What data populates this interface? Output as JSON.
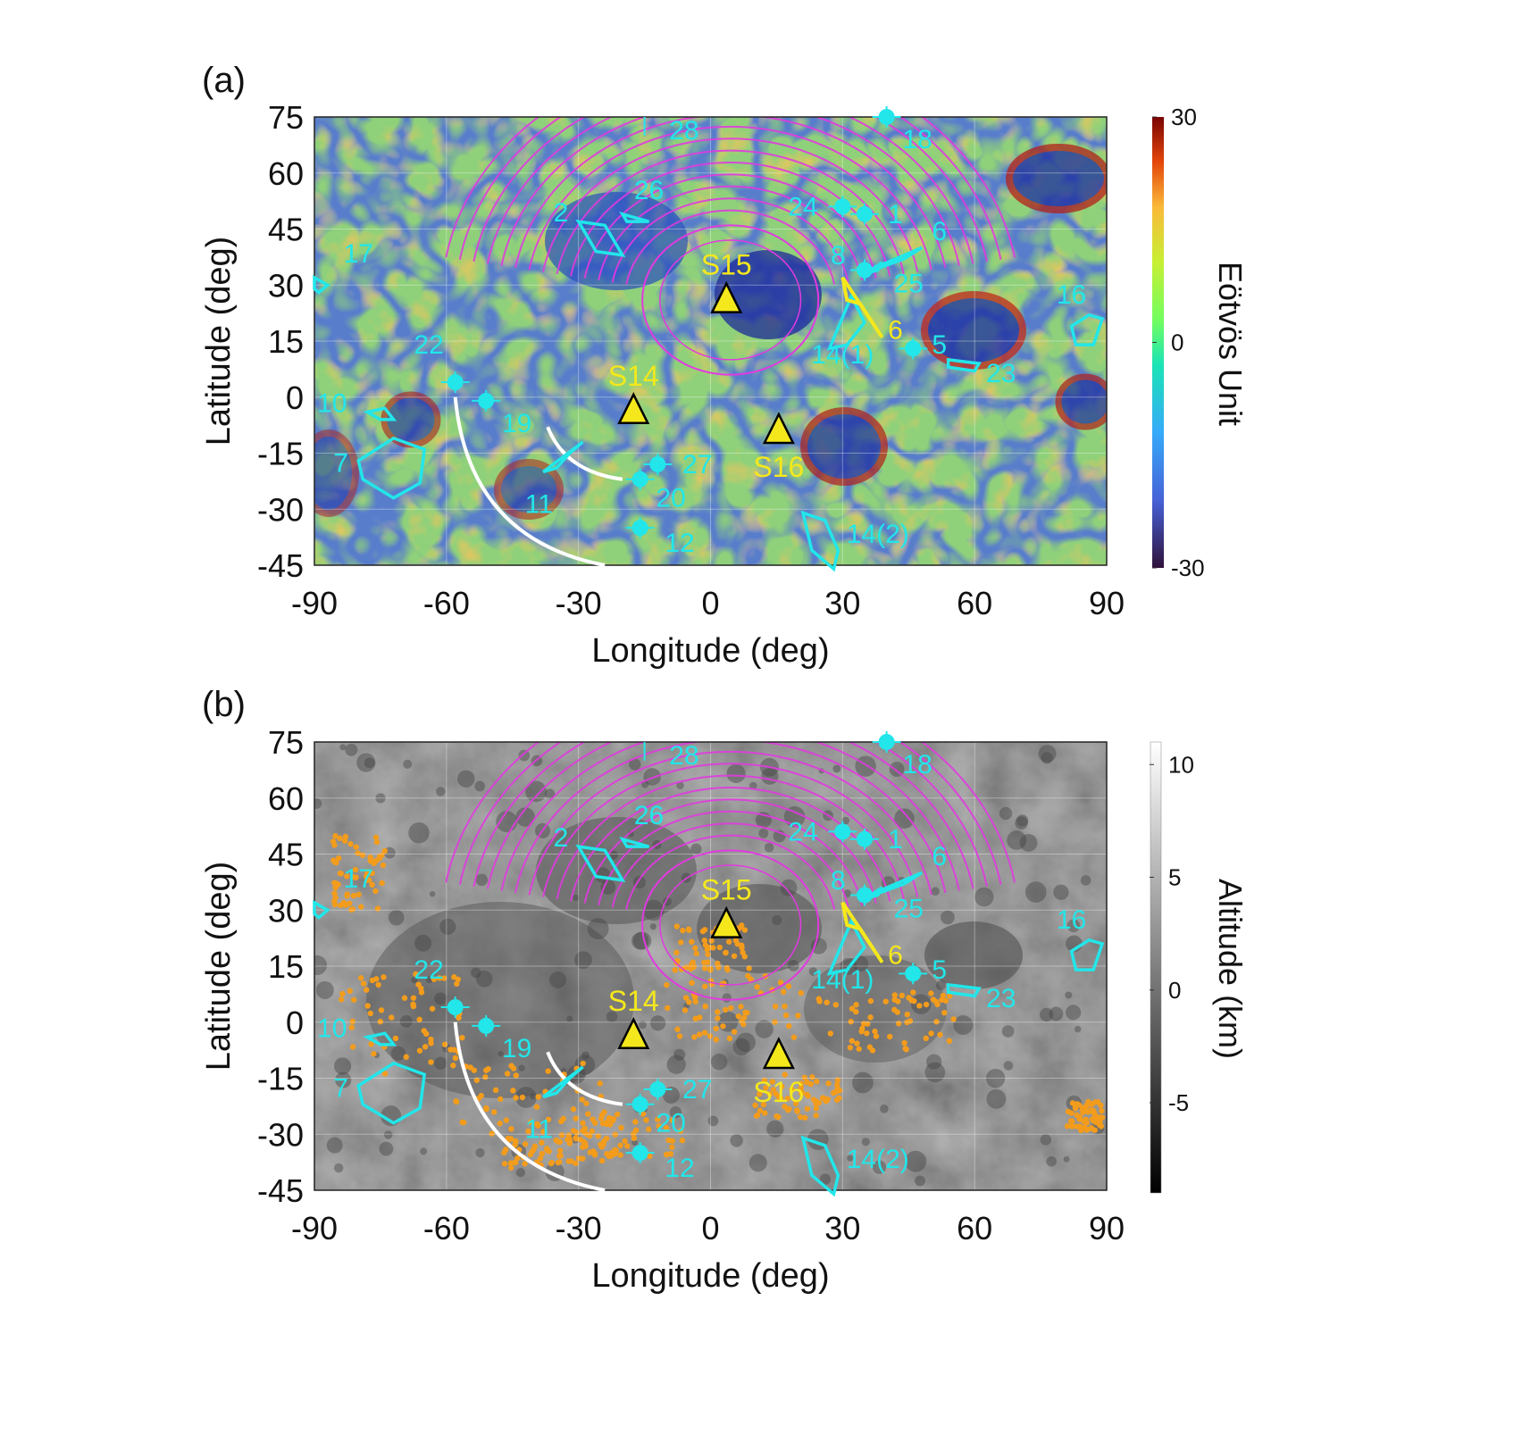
{
  "chart_data": [
    {
      "type": "map",
      "panel_label": "(a)",
      "xlabel": "Longitude (deg)",
      "ylabel": "Latitude (deg)",
      "xlim": [
        -90,
        90
      ],
      "ylim": [
        -45,
        75
      ],
      "x_ticks": [
        -90,
        -60,
        -30,
        0,
        30,
        60,
        90
      ],
      "y_ticks": [
        75,
        60,
        45,
        30,
        15,
        0,
        -15,
        -30,
        -45
      ],
      "grid": true,
      "colorbar": {
        "label": "Eötvös Unit",
        "ticks": [
          30,
          0,
          -30
        ],
        "range": [
          -30,
          30
        ],
        "colormap": "turbo"
      },
      "background": "gravity-gradient"
    },
    {
      "type": "map",
      "panel_label": "(b)",
      "xlabel": "Longitude (deg)",
      "ylabel": "Latitude (deg)",
      "xlim": [
        -90,
        90
      ],
      "ylim": [
        -45,
        75
      ],
      "x_ticks": [
        -90,
        -60,
        -30,
        0,
        30,
        60,
        90
      ],
      "y_ticks": [
        75,
        60,
        45,
        30,
        15,
        0,
        -15,
        -30,
        -45
      ],
      "grid": true,
      "colorbar": {
        "label": "Altitude (km)",
        "ticks": [
          10,
          5,
          0,
          -5
        ],
        "range": [
          -9,
          11
        ],
        "colormap": "gray"
      },
      "background": "topography"
    }
  ],
  "stations": [
    {
      "label": "S14",
      "lon": -17.5,
      "lat": -3.6
    },
    {
      "label": "S15",
      "lon": 3.6,
      "lat": 26.1
    },
    {
      "label": "S16",
      "lon": 15.5,
      "lat": -8.9
    }
  ],
  "points": [
    {
      "label": "1",
      "lon": 35,
      "lat": 49
    },
    {
      "label": "5",
      "lon": 46,
      "lat": 13
    },
    {
      "label": "8",
      "lon": 35,
      "lat": 34
    },
    {
      "label": "12",
      "lon": -16,
      "lat": -35
    },
    {
      "label": "18",
      "lon": 40,
      "lat": 75
    },
    {
      "label": "19",
      "lon": -51,
      "lat": -1
    },
    {
      "label": "20",
      "lon": -16,
      "lat": -22
    },
    {
      "label": "22",
      "lon": -58,
      "lat": 4
    },
    {
      "label": "24",
      "lon": 30,
      "lat": 51
    },
    {
      "label": "27",
      "lon": -12,
      "lat": -18
    }
  ],
  "regions": [
    {
      "label": "2",
      "lonlat": [
        [
          -30,
          47
        ],
        [
          -24,
          46
        ],
        [
          -20,
          38
        ],
        [
          -26,
          39
        ]
      ]
    },
    {
      "label": "6",
      "lonlat": [
        [
          38,
          35
        ],
        [
          48,
          40
        ],
        [
          44,
          37
        ],
        [
          37,
          34
        ]
      ]
    },
    {
      "label": "7",
      "lonlat": [
        [
          -80,
          -17
        ],
        [
          -72,
          -11
        ],
        [
          -65,
          -14
        ],
        [
          -66,
          -23
        ],
        [
          -72,
          -27
        ],
        [
          -79,
          -22
        ]
      ]
    },
    {
      "label": "10",
      "lonlat": [
        [
          -78,
          -4
        ],
        [
          -74,
          -3
        ],
        [
          -72,
          -6
        ],
        [
          -75,
          -6
        ]
      ]
    },
    {
      "label": "11",
      "lonlat": [
        [
          -38,
          -20
        ],
        [
          -29,
          -12
        ],
        [
          -32,
          -15
        ],
        [
          -35,
          -19
        ]
      ]
    },
    {
      "label": "14(1)",
      "lonlat": [
        [
          27,
          13
        ],
        [
          32,
          27
        ],
        [
          35,
          20
        ],
        [
          31,
          14
        ]
      ]
    },
    {
      "label": "14(2)",
      "lonlat": [
        [
          21,
          -31
        ],
        [
          26,
          -33
        ],
        [
          29,
          -41
        ],
        [
          28,
          -46
        ],
        [
          23,
          -41
        ]
      ]
    },
    {
      "label": "16",
      "lonlat": [
        [
          82,
          19
        ],
        [
          86,
          22
        ],
        [
          89,
          21
        ],
        [
          87,
          14
        ],
        [
          83,
          14
        ]
      ]
    },
    {
      "label": "17",
      "lonlat": [
        [
          -90,
          32
        ],
        [
          -87,
          30
        ],
        [
          -89,
          28
        ],
        [
          -90,
          29
        ]
      ]
    },
    {
      "label": "23",
      "lonlat": [
        [
          54,
          10
        ],
        [
          61,
          9
        ],
        [
          60,
          7
        ],
        [
          54,
          8
        ]
      ]
    },
    {
      "label": "25",
      "lonlat": [
        [
          39,
          36
        ],
        [
          35,
          33
        ],
        [
          38,
          34
        ]
      ]
    },
    {
      "label": "26",
      "lonlat": [
        [
          -20,
          49
        ],
        [
          -14,
          47
        ],
        [
          -19,
          47
        ]
      ]
    }
  ],
  "yellow_region_label": "6",
  "labels_extra": {
    "p28": "28"
  }
}
